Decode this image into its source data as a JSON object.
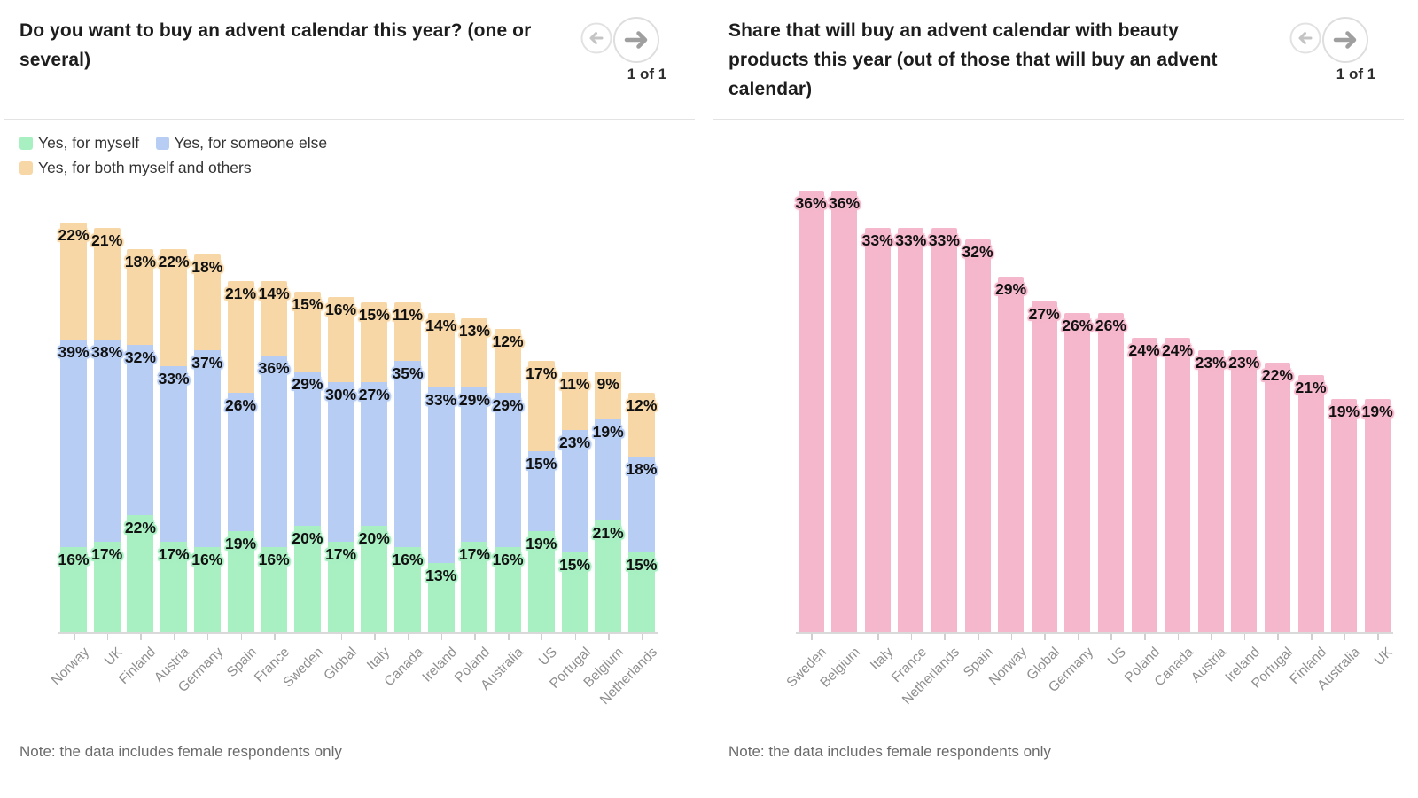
{
  "chart_data": [
    {
      "type": "bar",
      "stacked": true,
      "title": "Do you want to buy an advent calendar this year? (one or several)",
      "pagination": "1 of 1",
      "note": "Note: the data includes female respondents only",
      "legend_position": "top-left",
      "grid": false,
      "value_suffix": "%",
      "categories": [
        "Norway",
        "UK",
        "Finland",
        "Austria",
        "Germany",
        "Spain",
        "France",
        "Sweden",
        "Global",
        "Italy",
        "Canada",
        "Ireland",
        "Poland",
        "Australia",
        "US",
        "Portugal",
        "Belgium",
        "Netherlands"
      ],
      "series": [
        {
          "name": "Yes, for myself",
          "color": "#a8efc2",
          "values": [
            16,
            17,
            22,
            17,
            16,
            19,
            16,
            20,
            17,
            20,
            16,
            13,
            17,
            16,
            19,
            15,
            21,
            15
          ]
        },
        {
          "name": "Yes, for someone else",
          "color": "#b7cdf4",
          "values": [
            39,
            38,
            32,
            33,
            37,
            26,
            36,
            29,
            30,
            27,
            35,
            33,
            29,
            29,
            15,
            23,
            19,
            18
          ]
        },
        {
          "name": "Yes, for both myself and others",
          "color": "#f8d7a7",
          "values": [
            22,
            21,
            18,
            22,
            18,
            21,
            14,
            15,
            16,
            15,
            11,
            14,
            13,
            12,
            17,
            11,
            9,
            12
          ]
        }
      ]
    },
    {
      "type": "bar",
      "stacked": false,
      "title": "Share that will buy an advent calendar with beauty products this year (out of those that will buy an advent calendar)",
      "pagination": "1 of 1",
      "note": "Note: the data includes female respondents only",
      "grid": false,
      "value_suffix": "%",
      "categories": [
        "Sweden",
        "Belgium",
        "Italy",
        "France",
        "Netherlands",
        "Spain",
        "Norway",
        "Global",
        "Germany",
        "US",
        "Poland",
        "Canada",
        "Austria",
        "Ireland",
        "Portugal",
        "Finland",
        "Australia",
        "UK"
      ],
      "series": [
        {
          "name": "Share buying beauty advent calendar",
          "color": "#f5b7cc",
          "values": [
            36,
            36,
            33,
            33,
            33,
            32,
            29,
            27,
            26,
            26,
            24,
            24,
            23,
            23,
            22,
            21,
            19,
            19
          ]
        }
      ]
    }
  ]
}
